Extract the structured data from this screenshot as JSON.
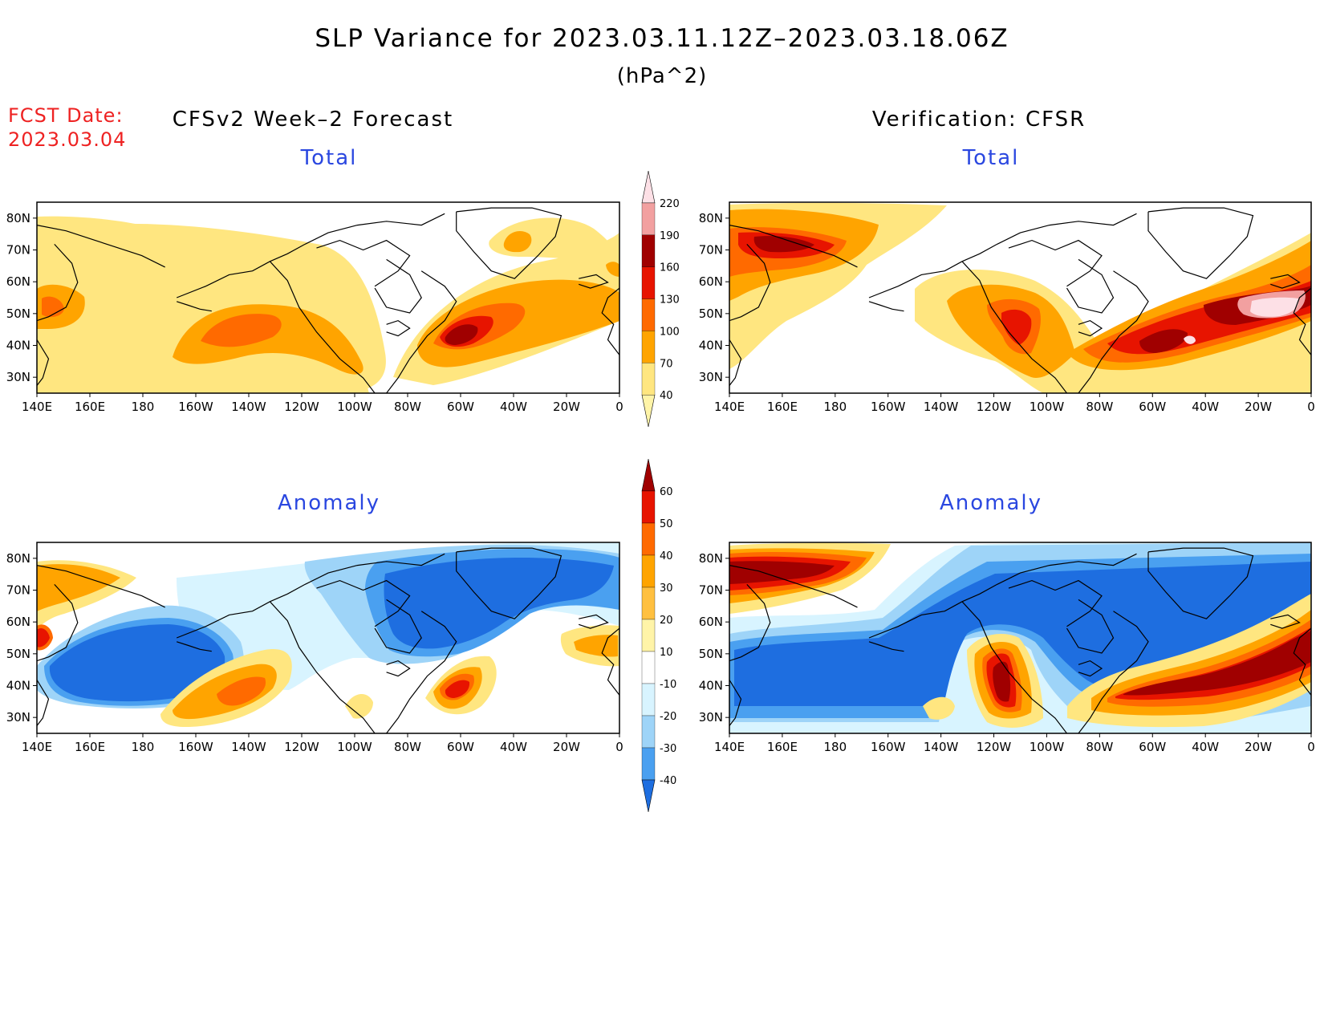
{
  "header": {
    "title": "SLP Variance for 2023.03.11.12Z–2023.03.18.06Z",
    "units": "(hPa^2)",
    "fcst_label": "FCST Date:",
    "fcst_date": "2023.03.04"
  },
  "columns": {
    "forecast": "CFSv2 Week–2 Forecast",
    "verification": "Verification: CFSR"
  },
  "panels": {
    "total_title": "Total",
    "anomaly_title": "Anomaly"
  },
  "axes": {
    "lon_labels": [
      "140E",
      "160E",
      "180",
      "160W",
      "140W",
      "120W",
      "100W",
      "80W",
      "60W",
      "40W",
      "20W",
      "0"
    ],
    "lat_labels": [
      "80N",
      "70N",
      "60N",
      "50N",
      "40N",
      "30N"
    ]
  },
  "colorbars": {
    "total": {
      "labels": [
        "40",
        "70",
        "100",
        "130",
        "160",
        "190",
        "220"
      ],
      "colors": [
        "#fff4a8",
        "#ffe680",
        "#ffa400",
        "#ff6a00",
        "#e71400",
        "#a00000",
        "#f2a0a0",
        "#fde0e6"
      ]
    },
    "anomaly": {
      "labels": [
        "60",
        "50",
        "40",
        "30",
        "20",
        "10",
        "-10",
        "-20",
        "-30",
        "-40"
      ],
      "colors": [
        "#a00000",
        "#e71400",
        "#ff6a00",
        "#ffa400",
        "#ffc040",
        "#fff4a8",
        "#ffffff",
        "#d8f4ff",
        "#9ed4f8",
        "#4aa0f0",
        "#1e6ee0"
      ]
    }
  },
  "map_colors": {
    "yellow": "#ffe680",
    "orange": "#ffa400",
    "dark_orange": "#ff6a00",
    "red": "#e71400",
    "dark_red": "#a00000",
    "pink": "#f2a0a0",
    "pale_pink": "#fde0e6",
    "blue": "#1e6ee0",
    "mid_blue": "#4aa0f0",
    "light_blue": "#9ed4f8",
    "pale_blue": "#d8f4ff",
    "pale_yellow": "#fff4a8",
    "gold": "#ffc040"
  }
}
